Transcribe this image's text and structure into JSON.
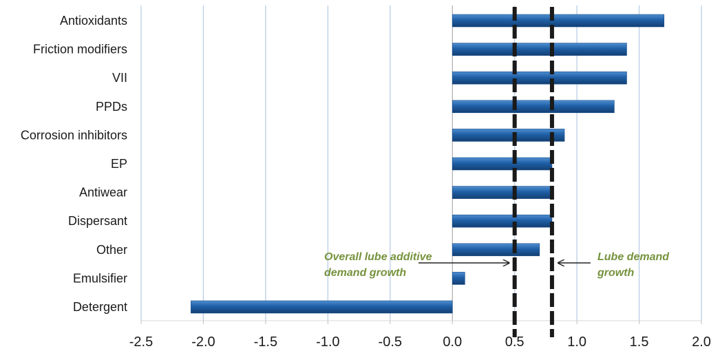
{
  "chart_data": {
    "type": "bar",
    "orientation": "horizontal",
    "categories": [
      "Antioxidants",
      "Friction modifiers",
      "VII",
      "PPDs",
      "Corrosion inhibitors",
      "EP",
      "Antiwear",
      "Dispersant",
      "Other",
      "Emulsifier",
      "Detergent"
    ],
    "values": [
      1.7,
      1.4,
      1.4,
      1.3,
      0.9,
      0.8,
      0.8,
      0.8,
      0.7,
      0.1,
      -2.1
    ],
    "xlim": [
      -2.5,
      2.0
    ],
    "xticks": [
      "-2.5",
      "-2.0",
      "-1.5",
      "-1.0",
      "-0.5",
      "0.0",
      "0.5",
      "1.0",
      "1.5",
      "2.0"
    ],
    "grid": "vertical",
    "bar_color": "#1f5fa6",
    "reference_lines": [
      {
        "value": 0.5,
        "label": [
          "Overall lube additive",
          "demand growth"
        ]
      },
      {
        "value": 0.8,
        "label": [
          "Lube demand",
          "growth"
        ]
      }
    ],
    "annotation_color": "#76923c"
  }
}
